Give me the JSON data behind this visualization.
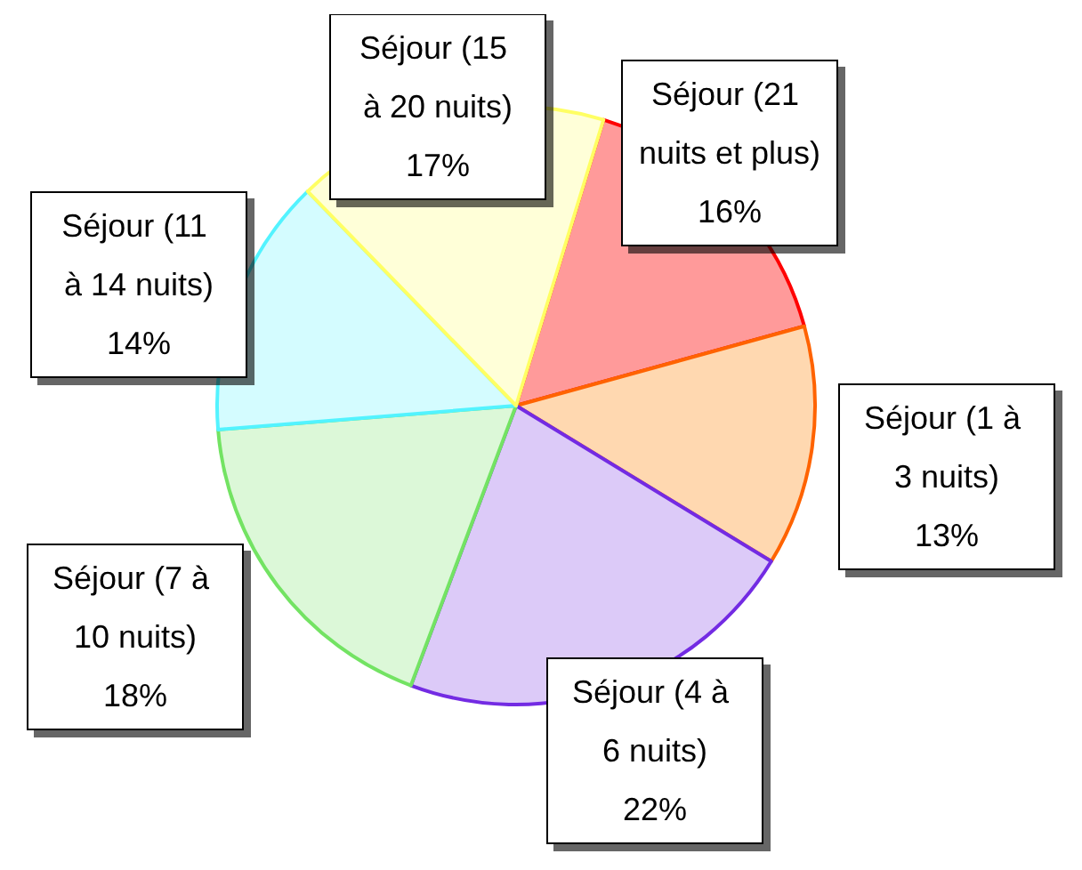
{
  "chart_data": {
    "type": "pie",
    "categories": [
      "Séjour (21 nuits et plus)",
      "Séjour (1 à 3 nuits)",
      "Séjour (4 à 6 nuits)",
      "Séjour (7 à 10 nuits)",
      "Séjour (11 à 14 nuits)",
      "Séjour (15 à 20 nuits)"
    ],
    "values": [
      16,
      13,
      22,
      18,
      14,
      17
    ],
    "value_labels": [
      "16%",
      "13%",
      "22%",
      "18%",
      "14%",
      "17%"
    ],
    "colors": [
      "#ff9a9a",
      "#ffd8b0",
      "#dccaf8",
      "#dcf8d8",
      "#d4fcff",
      "#ffffd8"
    ],
    "legend": false
  }
}
